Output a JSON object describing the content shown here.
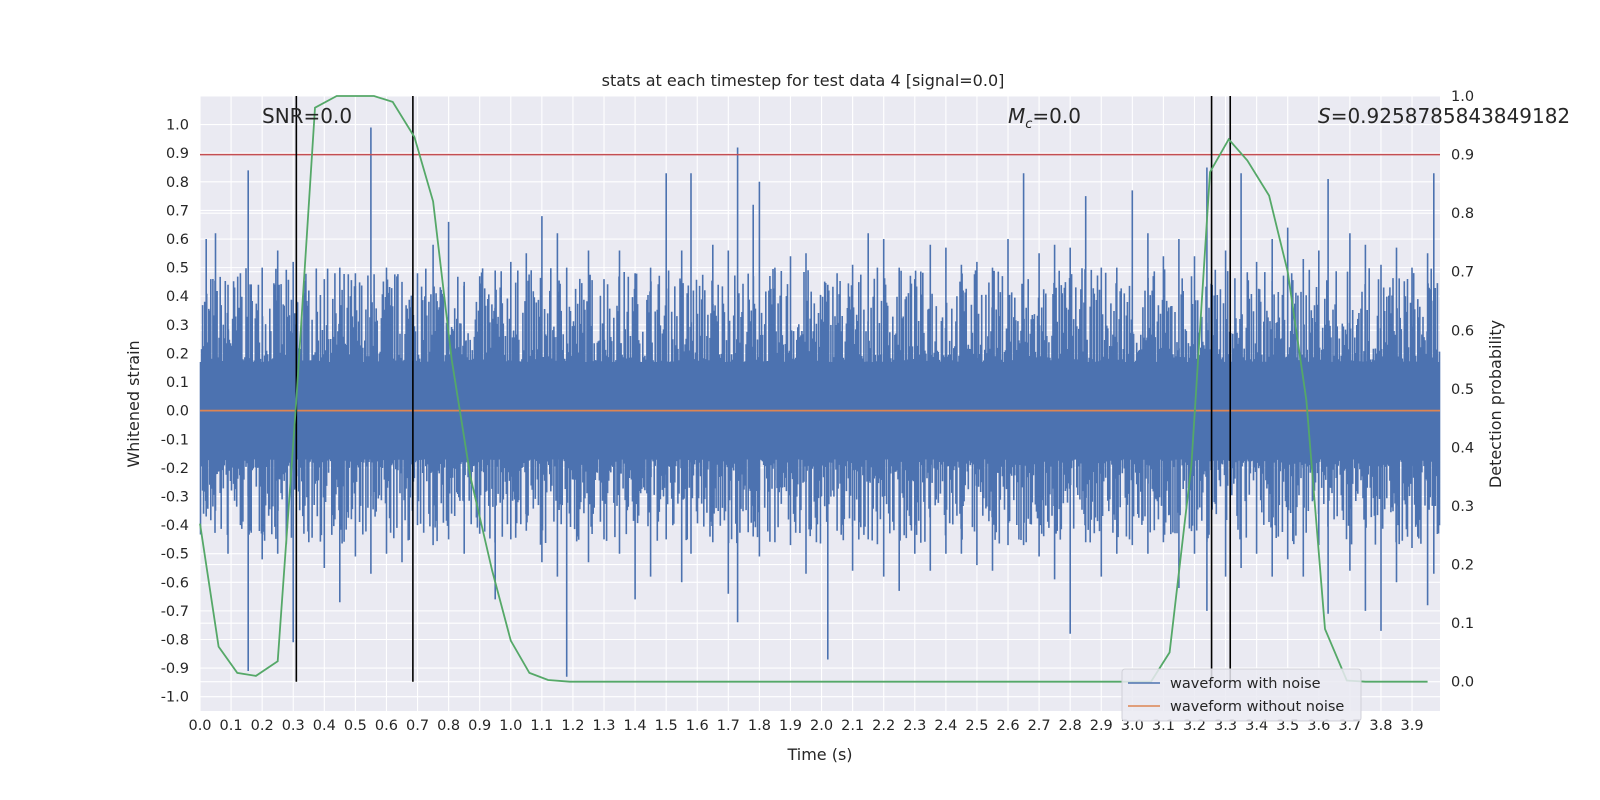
{
  "chart_data": {
    "type": "line",
    "title": "stats at each timestep for test data 4 [signal=0.0]",
    "xlabel": "Time (s)",
    "ylabel": "Whitened strain",
    "y2label": "Detection probability",
    "xlim": [
      0.0,
      3.99
    ],
    "ylim": [
      -1.05,
      1.1
    ],
    "y2lim": [
      -0.05,
      1.0
    ],
    "x_ticks": [
      "0.0",
      "0.1",
      "0.2",
      "0.3",
      "0.4",
      "0.5",
      "0.6",
      "0.7",
      "0.8",
      "0.9",
      "1.0",
      "1.1",
      "1.2",
      "1.3",
      "1.4",
      "1.5",
      "1.6",
      "1.7",
      "1.8",
      "1.9",
      "2.0",
      "2.1",
      "2.2",
      "2.3",
      "2.4",
      "2.5",
      "2.6",
      "2.7",
      "2.8",
      "2.9",
      "3.0",
      "3.1",
      "3.2",
      "3.3",
      "3.4",
      "3.5",
      "3.6",
      "3.7",
      "3.8",
      "3.9"
    ],
    "y_ticks": [
      "1.0",
      "0.9",
      "0.8",
      "0.7",
      "0.6",
      "0.5",
      "0.4",
      "0.3",
      "0.2",
      "0.1",
      "0.0",
      "-0.1",
      "-0.2",
      "-0.3",
      "-0.4",
      "-0.5",
      "-0.6",
      "-0.7",
      "-0.8",
      "-0.9",
      "-1.0"
    ],
    "y2_ticks": [
      "1.0",
      "0.9",
      "0.8",
      "0.7",
      "0.6",
      "0.5",
      "0.4",
      "0.3",
      "0.2",
      "0.1",
      "0.0"
    ],
    "grid": true,
    "legend_placement": "lower-right",
    "annotations": {
      "snr": "SNR=0.0",
      "mc_symbol": "M",
      "mc_sub": "c",
      "mc_value": "=0.0",
      "s_symbol": "S",
      "s_value": "=0.9258785843849182"
    },
    "series": [
      {
        "name": "waveform with noise",
        "color": "#4c72b0",
        "axis": "left",
        "envelope_peaks": [
          [
            0.02,
            0.6,
            -0.37
          ],
          [
            0.05,
            0.62,
            -0.35
          ],
          [
            0.09,
            0.44,
            -0.5
          ],
          [
            0.13,
            0.48,
            -0.4
          ],
          [
            0.155,
            0.84,
            -0.91
          ],
          [
            0.2,
            0.5,
            -0.52
          ],
          [
            0.25,
            0.56,
            -0.5
          ],
          [
            0.3,
            0.52,
            -0.81
          ],
          [
            0.35,
            0.42,
            -0.46
          ],
          [
            0.4,
            0.46,
            -0.55
          ],
          [
            0.45,
            0.5,
            -0.67
          ],
          [
            0.5,
            0.48,
            -0.51
          ],
          [
            0.55,
            0.99,
            -0.57
          ],
          [
            0.6,
            0.5,
            -0.5
          ],
          [
            0.65,
            0.45,
            -0.53
          ],
          [
            0.7,
            0.48,
            -0.4
          ],
          [
            0.75,
            0.58,
            -0.47
          ],
          [
            0.8,
            0.66,
            -0.45
          ],
          [
            0.85,
            0.45,
            -0.5
          ],
          [
            0.9,
            0.47,
            -0.43
          ],
          [
            0.95,
            0.49,
            -0.66
          ],
          [
            1.0,
            0.52,
            -0.45
          ],
          [
            1.05,
            0.55,
            -0.42
          ],
          [
            1.1,
            0.68,
            -0.53
          ],
          [
            1.15,
            0.62,
            -0.58
          ],
          [
            1.18,
            0.5,
            -0.93
          ],
          [
            1.25,
            0.56,
            -0.53
          ],
          [
            1.3,
            0.46,
            -0.45
          ],
          [
            1.35,
            0.56,
            -0.5
          ],
          [
            1.4,
            0.48,
            -0.66
          ],
          [
            1.45,
            0.5,
            -0.58
          ],
          [
            1.5,
            0.83,
            -0.45
          ],
          [
            1.55,
            0.56,
            -0.6
          ],
          [
            1.58,
            0.83,
            -0.5
          ],
          [
            1.65,
            0.58,
            -0.46
          ],
          [
            1.7,
            0.56,
            -0.64
          ],
          [
            1.73,
            0.92,
            -0.74
          ],
          [
            1.78,
            0.72,
            -0.44
          ],
          [
            1.8,
            0.8,
            -0.51
          ],
          [
            1.85,
            0.5,
            -0.46
          ],
          [
            1.9,
            0.54,
            -0.47
          ],
          [
            1.95,
            0.55,
            -0.57
          ],
          [
            2.02,
            0.44,
            -0.87
          ],
          [
            2.05,
            0.48,
            -0.42
          ],
          [
            2.1,
            0.51,
            -0.56
          ],
          [
            2.15,
            0.62,
            -0.45
          ],
          [
            2.2,
            0.6,
            -0.58
          ],
          [
            2.25,
            0.5,
            -0.63
          ],
          [
            2.3,
            0.46,
            -0.5
          ],
          [
            2.35,
            0.58,
            -0.56
          ],
          [
            2.4,
            0.57,
            -0.5
          ],
          [
            2.45,
            0.51,
            -0.5
          ],
          [
            2.5,
            0.52,
            -0.54
          ],
          [
            2.55,
            0.5,
            -0.56
          ],
          [
            2.6,
            0.6,
            -0.47
          ],
          [
            2.65,
            0.83,
            -0.47
          ],
          [
            2.7,
            0.55,
            -0.51
          ],
          [
            2.75,
            0.58,
            -0.59
          ],
          [
            2.8,
            0.57,
            -0.78
          ],
          [
            2.85,
            0.75,
            -0.46
          ],
          [
            2.9,
            0.5,
            -0.58
          ],
          [
            2.95,
            0.5,
            -0.5
          ],
          [
            3.0,
            0.77,
            -0.47
          ],
          [
            3.05,
            0.62,
            -0.5
          ],
          [
            3.1,
            0.54,
            -0.46
          ],
          [
            3.15,
            0.6,
            -0.62
          ],
          [
            3.2,
            0.54,
            -0.5
          ],
          [
            3.24,
            0.85,
            -0.7
          ],
          [
            3.3,
            0.56,
            -0.58
          ],
          [
            3.35,
            0.83,
            -0.55
          ],
          [
            3.4,
            0.52,
            -0.5
          ],
          [
            3.45,
            0.6,
            -0.58
          ],
          [
            3.5,
            0.64,
            -0.52
          ],
          [
            3.55,
            0.53,
            -0.58
          ],
          [
            3.6,
            0.56,
            -0.47
          ],
          [
            3.63,
            0.81,
            -0.71
          ],
          [
            3.7,
            0.62,
            -0.56
          ],
          [
            3.75,
            0.58,
            -0.7
          ],
          [
            3.8,
            0.51,
            -0.77
          ],
          [
            3.85,
            0.57,
            -0.6
          ],
          [
            3.9,
            0.5,
            -0.48
          ],
          [
            3.95,
            0.55,
            -0.68
          ],
          [
            3.97,
            0.83,
            -0.57
          ]
        ]
      },
      {
        "name": "waveform without noise",
        "color": "#dd8452",
        "axis": "left",
        "x": [
          0.0,
          3.99
        ],
        "y": [
          0.0,
          0.0
        ]
      },
      {
        "name": "detection probability",
        "color": "#55a868",
        "axis": "right",
        "x": [
          0.0,
          0.06,
          0.12,
          0.18,
          0.25,
          0.31,
          0.37,
          0.44,
          0.5,
          0.56,
          0.62,
          0.69,
          0.75,
          0.81,
          0.87,
          0.94,
          1.0,
          1.06,
          1.12,
          1.19,
          1.25,
          1.31,
          1.37,
          1.44,
          1.5,
          1.56,
          1.62,
          1.69,
          1.75,
          1.81,
          1.87,
          1.94,
          2.0,
          2.06,
          2.12,
          2.19,
          2.25,
          2.31,
          2.37,
          2.44,
          2.5,
          2.56,
          2.62,
          2.69,
          2.75,
          2.81,
          2.87,
          2.94,
          3.0,
          3.06,
          3.12,
          3.19,
          3.25,
          3.31,
          3.37,
          3.44,
          3.5,
          3.56,
          3.62,
          3.69,
          3.75,
          3.81,
          3.87,
          3.95
        ],
        "y": [
          0.27,
          0.06,
          0.015,
          0.01,
          0.035,
          0.48,
          0.98,
          1.0,
          1.0,
          1.0,
          0.99,
          0.93,
          0.82,
          0.55,
          0.35,
          0.19,
          0.07,
          0.015,
          0.003,
          0.0,
          0.0,
          0.0,
          0.0,
          0.0,
          0.0,
          0.0,
          0.0,
          0.0,
          0.0,
          0.0,
          0.0,
          0.0,
          0.0,
          0.0,
          0.0,
          0.0,
          0.0,
          0.0,
          0.0,
          0.0,
          0.0,
          0.0,
          0.0,
          0.0,
          0.0,
          0.0,
          0.0,
          0.0,
          0.0,
          0.0,
          0.05,
          0.37,
          0.87,
          0.926,
          0.89,
          0.83,
          0.7,
          0.48,
          0.09,
          0.002,
          0.0,
          0.0,
          0.0,
          0.0
        ]
      }
    ],
    "threshold": {
      "y2": 0.9,
      "color": "#c44e52"
    },
    "event_markers": {
      "x": [
        0.31,
        0.685,
        3.255,
        3.315
      ],
      "y2_range": [
        0.0,
        1.0
      ],
      "color": "#000000"
    }
  }
}
